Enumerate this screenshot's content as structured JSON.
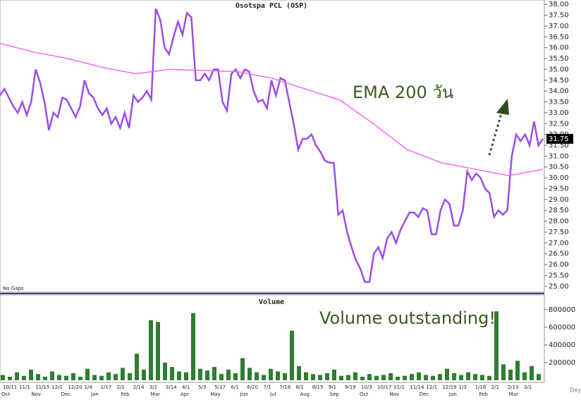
{
  "chart_data": {
    "type": "line",
    "title": "Osotspa PCL (OSP)",
    "annotation_ema": "EMA 200 วัน",
    "annotation_volume": "Volume outstanding!",
    "no_gaps": "No Gaps",
    "volume_title": "Volume",
    "x_unit": "Day",
    "last_price_label": "31.75",
    "date_labels": [
      "10/11",
      "11/1",
      "11/15",
      "12/1",
      "12/20",
      "1/4",
      "1/17",
      "2/1",
      "2/14",
      "3/1",
      "3/14",
      "4/1",
      "5/3",
      "5/17",
      "6/1",
      "6/20",
      "7/1",
      "7/18",
      "8/1",
      "8/15",
      "9/1",
      "9/19",
      "10/3",
      "10/17",
      "11/1",
      "11/14",
      "12/1",
      "12/19",
      "1/3",
      "1/16",
      "2/1",
      "2/13",
      "3/1"
    ],
    "month_labels": [
      "Oct",
      "Nov",
      "Dec",
      "Jan",
      "Feb",
      "Mar",
      "Apr",
      "May",
      "Jun",
      "Jul",
      "Aug",
      "Sep",
      "Oct",
      "Nov",
      "Dec",
      "Jan",
      "Feb",
      "Mar"
    ],
    "series": [
      {
        "name": "Price",
        "color": "#9b4dea",
        "values": [
          33.8,
          34.1,
          33.7,
          33.3,
          33.0,
          33.5,
          32.9,
          33.5,
          35.0,
          34.4,
          33.5,
          32.2,
          33.0,
          32.8,
          33.7,
          33.6,
          33.2,
          32.8,
          33.3,
          34.5,
          33.9,
          33.7,
          33.2,
          32.9,
          33.2,
          32.5,
          32.8,
          32.3,
          33.0,
          32.3,
          33.8,
          33.5,
          33.7,
          34.0,
          33.6,
          37.8,
          37.3,
          36.0,
          35.7,
          36.5,
          37.2,
          36.6,
          37.6,
          37.4,
          34.5,
          34.5,
          34.8,
          34.5,
          35.0,
          35.0,
          33.5,
          33.1,
          34.8,
          35.0,
          34.6,
          35.0,
          34.9,
          34.0,
          33.5,
          33.6,
          33.2,
          34.5,
          33.8,
          34.6,
          34.5,
          33.5,
          32.5,
          31.3,
          31.8,
          31.8,
          32.0,
          31.5,
          31.2,
          30.8,
          30.7,
          30.7,
          28.3,
          28.5,
          27.5,
          26.8,
          26.2,
          25.8,
          25.2,
          25.2,
          26.5,
          26.8,
          26.3,
          27.2,
          27.5,
          27.0,
          27.6,
          28.0,
          28.4,
          28.4,
          28.2,
          28.6,
          28.5,
          27.4,
          27.4,
          28.5,
          29.0,
          28.8,
          27.8,
          27.8,
          28.5,
          30.3,
          29.9,
          30.2,
          30.0,
          29.5,
          29.3,
          28.2,
          28.5,
          28.3,
          28.5,
          31.0,
          32.0,
          31.7,
          32.0,
          31.5,
          32.6,
          31.5,
          31.8
        ]
      },
      {
        "name": "EMA 200",
        "color": "#f06af0",
        "values": [
          36.2,
          35.8,
          35.5,
          35.1,
          34.8,
          35.0,
          34.95,
          34.9,
          34.6,
          34.1,
          33.6,
          32.5,
          31.3,
          30.7,
          30.4,
          30.1,
          30.4
        ]
      }
    ],
    "ylim": [
      24.8,
      38.2
    ],
    "yticks": [
      {
        "value": 25,
        "label": "25.00"
      },
      {
        "value": 25.5,
        "label": "25.50"
      },
      {
        "value": 26,
        "label": "26.00"
      },
      {
        "value": 26.5,
        "label": "26.50"
      },
      {
        "value": 27,
        "label": "27.00"
      },
      {
        "value": 27.5,
        "label": "27.50"
      },
      {
        "value": 28,
        "label": "28.00"
      },
      {
        "value": 28.5,
        "label": "28.50"
      },
      {
        "value": 29,
        "label": "29.00"
      },
      {
        "value": 29.5,
        "label": "29.50"
      },
      {
        "value": 30,
        "label": "30.00"
      },
      {
        "value": 30.5,
        "label": "30.50"
      },
      {
        "value": 31,
        "label": "31.00"
      },
      {
        "value": 31.5,
        "label": "31.50"
      },
      {
        "value": 32,
        "label": "32.00"
      },
      {
        "value": 32.5,
        "label": "32.50"
      },
      {
        "value": 33,
        "label": "33.00"
      },
      {
        "value": 33.5,
        "label": "33.50"
      },
      {
        "value": 34,
        "label": "34.00"
      },
      {
        "value": 34.5,
        "label": "34.50"
      },
      {
        "value": 35,
        "label": "35.00"
      },
      {
        "value": 35.5,
        "label": "35.50"
      },
      {
        "value": 36,
        "label": "36.00"
      },
      {
        "value": 36.5,
        "label": "36.50"
      },
      {
        "value": 37,
        "label": "37.00"
      },
      {
        "value": 37.5,
        "label": "37.50"
      },
      {
        "value": 38,
        "label": "38.00"
      }
    ],
    "volume": {
      "color": "#2e7d32",
      "values": [
        60000,
        40000,
        90000,
        50000,
        120000,
        70000,
        40000,
        100000,
        60000,
        50000,
        80000,
        40000,
        130000,
        60000,
        50000,
        90000,
        70000,
        140000,
        80000,
        300000,
        120000,
        680000,
        660000,
        200000,
        150000,
        100000,
        90000,
        760000,
        130000,
        110000,
        150000,
        70000,
        120000,
        80000,
        250000,
        140000,
        90000,
        60000,
        130000,
        100000,
        80000,
        560000,
        160000,
        90000,
        70000,
        60000,
        80000,
        120000,
        50000,
        60000,
        90000,
        40000,
        70000,
        50000,
        60000,
        80000,
        40000,
        50000,
        70000,
        90000,
        60000,
        50000,
        70000,
        130000,
        80000,
        60000,
        90000,
        70000,
        60000,
        50000,
        780000,
        180000,
        120000,
        220000,
        90000,
        160000,
        70000
      ],
      "ylim": [
        0,
        950000
      ],
      "yticks": [
        200000,
        400000,
        600000,
        800000
      ]
    }
  }
}
